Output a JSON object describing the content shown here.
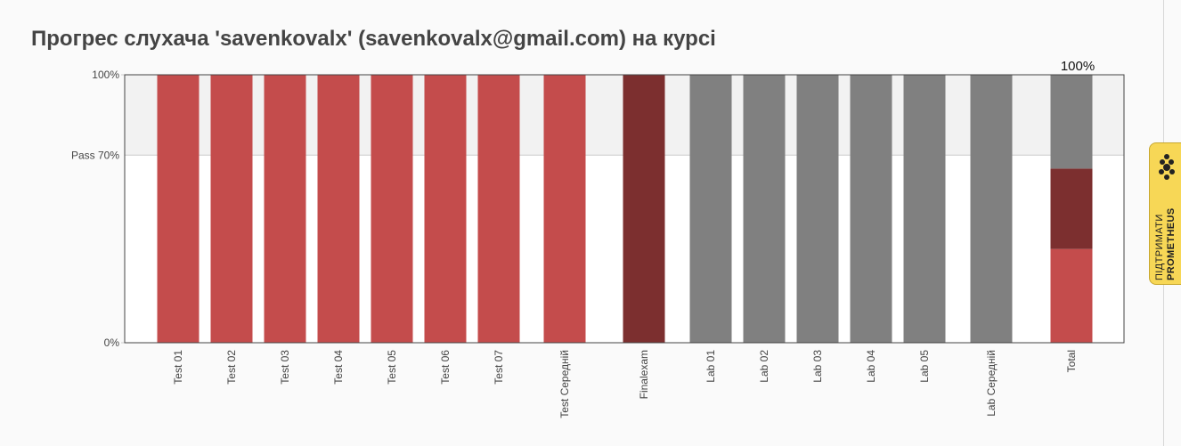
{
  "page": {
    "title": "Прогрес слухача 'savenkovalx' (savenkovalx@gmail.com) на курсі"
  },
  "support": {
    "line1": "ПІДТРИМАТИ",
    "line2": "PROMETHEUS",
    "bg_color": "#f7d756"
  },
  "chart_data": {
    "type": "bar",
    "title": "",
    "xlabel": "",
    "ylabel": "",
    "ylim": [
      0,
      100
    ],
    "y_ticks": [
      {
        "value": 0,
        "label": "0%"
      },
      {
        "value": 70,
        "label": "Pass 70%"
      },
      {
        "value": 100,
        "label": "100%"
      }
    ],
    "pass_threshold": 70,
    "grid": false,
    "colors": {
      "test": "#c44c4c",
      "finalexam": "#7c2f2f",
      "lab": "#808080",
      "above_pass_band": "#f2f2f2"
    },
    "categories": [
      "Test 01",
      "Test 02",
      "Test 03",
      "Test 04",
      "Test 05",
      "Test 06",
      "Test 07",
      "Test Середній",
      "Finalexam",
      "Lab 01",
      "Lab 02",
      "Lab 03",
      "Lab 04",
      "Lab 05",
      "Lab Середній",
      "Total"
    ],
    "values": [
      100,
      100,
      100,
      100,
      100,
      100,
      100,
      100,
      100,
      100,
      100,
      100,
      100,
      100,
      100,
      100
    ],
    "groups": [
      "test",
      "test",
      "test",
      "test",
      "test",
      "test",
      "test",
      "test",
      "finalexam",
      "lab",
      "lab",
      "lab",
      "lab",
      "lab",
      "lab",
      "total"
    ],
    "total_stack": [
      {
        "group": "test",
        "value": 35
      },
      {
        "group": "finalexam",
        "value": 30
      },
      {
        "group": "lab",
        "value": 35
      }
    ],
    "total_label": "100%"
  }
}
